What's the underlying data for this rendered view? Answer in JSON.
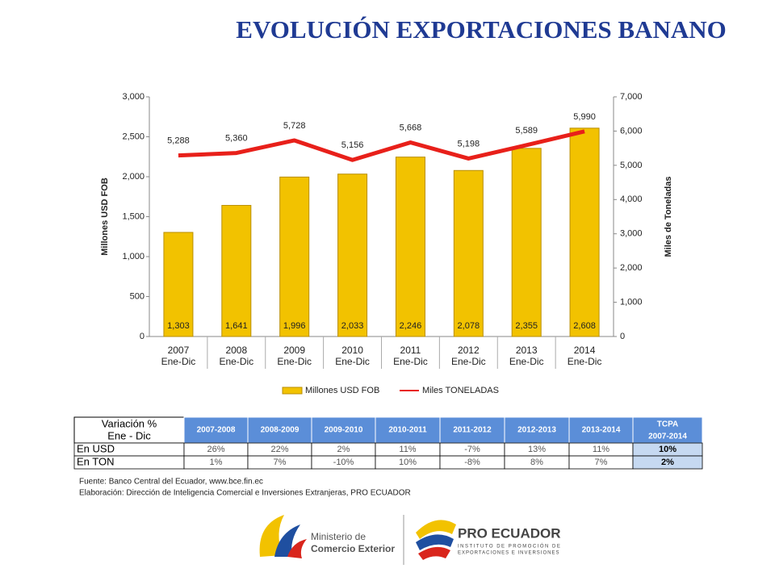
{
  "chart_data": {
    "type": "bar_line",
    "title": "EVOLUCIÓN EXPORTACIONES BANANO",
    "categories": [
      "2007",
      "2008",
      "2009",
      "2010",
      "2011",
      "2012",
      "2013",
      "2014"
    ],
    "category_sublabels": [
      "Ene-Dic",
      "Ene-Dic",
      "Ene-Dic",
      "Ene-Dic",
      "Ene-Dic",
      "Ene-Dic",
      "Ene-Dic",
      "Ene-Dic"
    ],
    "series": [
      {
        "name": "Millones USD FOB",
        "type": "bar",
        "color": "#f2c200",
        "values": [
          1303,
          1641,
          1996,
          2033,
          2246,
          2078,
          2355,
          2608
        ],
        "value_labels": [
          "1,303",
          "1,641",
          "1,996",
          "2,033",
          "2,246",
          "2,078",
          "2,355",
          "2,608"
        ]
      },
      {
        "name": "Miles TONELADAS",
        "type": "line",
        "axis": "y2",
        "color": "#e8201a",
        "values": [
          5288,
          5360,
          5728,
          5156,
          5668,
          5198,
          5589,
          5990
        ],
        "value_labels": [
          "5,288",
          "5,360",
          "5,728",
          "5,156",
          "5,668",
          "5,198",
          "5,589",
          "5,990"
        ]
      }
    ],
    "ylabel": "Millones USD FOB",
    "y2label": "Miles  de  Toneladas",
    "ylim": [
      0,
      3000
    ],
    "yticks": [
      0,
      500,
      {
        "value": 1000,
        "label": "1,000"
      },
      {
        "value": 1500,
        "label": "1,500"
      },
      {
        "value": 2000,
        "label": "2,000"
      },
      {
        "value": 2500,
        "label": "2,500"
      },
      {
        "value": 3000,
        "label": "3,000"
      }
    ],
    "y2lim": [
      0,
      7000
    ],
    "y2ticks": [
      0,
      {
        "value": 1000,
        "label": "1,000"
      },
      {
        "value": 2000,
        "label": "2,000"
      },
      {
        "value": 3000,
        "label": "3,000"
      },
      {
        "value": 4000,
        "label": "4,000"
      },
      {
        "value": 5000,
        "label": "5,000"
      },
      {
        "value": 6000,
        "label": "6,000"
      },
      {
        "value": 7000,
        "label": "7,000"
      }
    ],
    "legend": "bottom"
  },
  "table": {
    "header": [
      [
        "Variación %",
        "Ene - Dic"
      ],
      [
        "2007-2008"
      ],
      [
        "2008-2009"
      ],
      [
        "2009-2010"
      ],
      [
        "2010-2011"
      ],
      [
        "2011-2012"
      ],
      [
        "2012-2013"
      ],
      [
        "2013-2014"
      ],
      [
        "TCPA",
        "2007-2014"
      ]
    ],
    "rows": [
      [
        "En USD",
        "26%",
        "22%",
        "2%",
        "11%",
        "-7%",
        "13%",
        "11%",
        "10%"
      ],
      [
        "En TON",
        "1%",
        "7%",
        "-10%",
        "10%",
        "-8%",
        "8%",
        "7%",
        "2%"
      ]
    ]
  },
  "footnotes": [
    "Fuente: Banco Central del Ecuador, www.bce.fin.ec",
    "Elaboración: Dirección de Inteligencia Comercial e Inversiones Extranjeras, PRO ECUADOR"
  ],
  "logos": {
    "ministry": [
      "Ministerio de",
      "Comercio Exterior"
    ],
    "proecuador": [
      "PRO ECUADOR",
      "INSTITUTO DE PROMOCIÓN DE",
      "EXPORTACIONES E INVERSIONES"
    ]
  }
}
